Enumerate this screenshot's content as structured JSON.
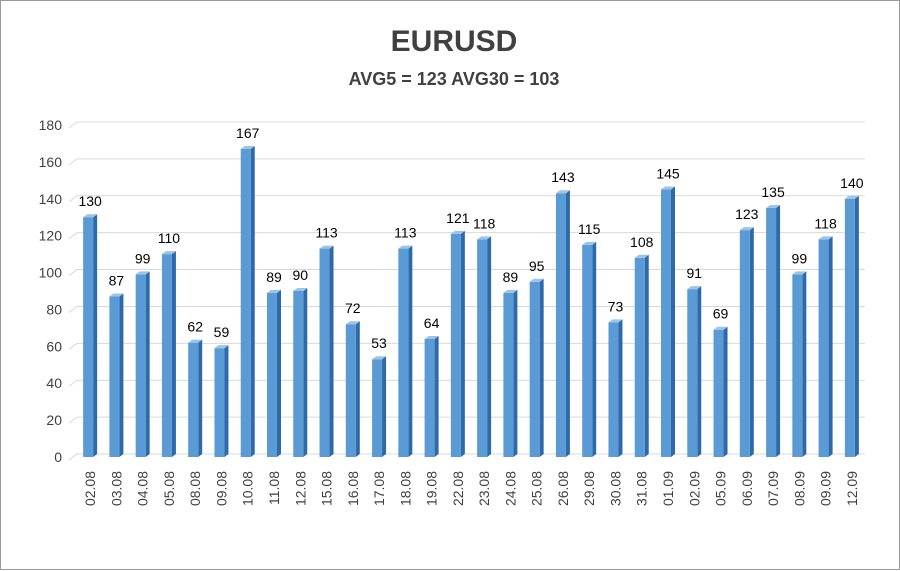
{
  "chart_data": {
    "type": "bar",
    "title": "EURUSD",
    "subtitle": "AVG5 = 123 AVG30 = 103",
    "categories": [
      "02.08",
      "03.08",
      "04.08",
      "05.08",
      "08.08",
      "09.08",
      "10.08",
      "11.08",
      "12.08",
      "15.08",
      "16.08",
      "17.08",
      "18.08",
      "19.08",
      "22.08",
      "23.08",
      "24.08",
      "25.08",
      "26.08",
      "29.08",
      "30.08",
      "31.08",
      "01.09",
      "02.09",
      "05.09",
      "06.09",
      "07.09",
      "08.09",
      "09.09",
      "12.09"
    ],
    "values": [
      130,
      87,
      99,
      110,
      62,
      59,
      167,
      89,
      90,
      113,
      72,
      53,
      113,
      64,
      121,
      118,
      89,
      95,
      143,
      115,
      73,
      108,
      145,
      91,
      69,
      123,
      135,
      99,
      118,
      140
    ],
    "ylim": [
      0,
      180
    ],
    "yticks": [
      0,
      20,
      40,
      60,
      80,
      100,
      120,
      140,
      160,
      180
    ],
    "grid": true,
    "colors": {
      "bar": "#5b9bd5",
      "bar_side": "#2e6aa8",
      "bar_top": "#9cc3e8",
      "grid": "#d9d9d9"
    }
  }
}
